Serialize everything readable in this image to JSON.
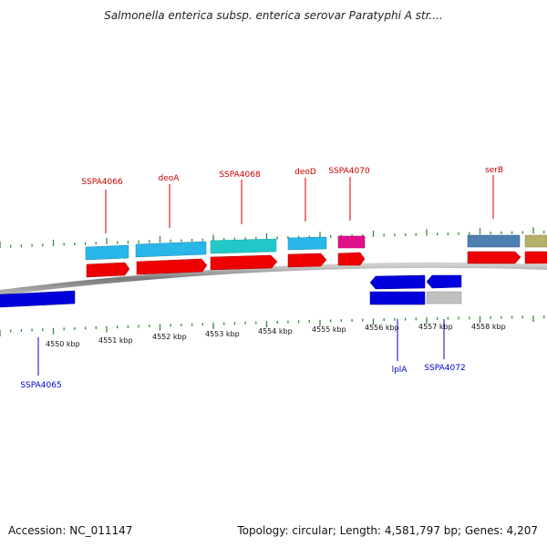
{
  "title": "Salmonella enterica subsp. enterica serovar Paratyphi A str....",
  "accession": "Accession: NC_011147",
  "summary": "Topology: circular; Length: 4,581,797 bp; Genes: 4,207",
  "colors": {
    "backbone": "#8c8c8c",
    "tick": "#2e8b2e",
    "gene_label_top": "#cc0000",
    "gene_label_bottom": "#0000cc",
    "cds": "#ee0000",
    "cds_reverse": "#0000dd"
  },
  "scale_labels": [
    "4550 kbp",
    "4551 kbp",
    "4552 kbp",
    "4553 kbp",
    "4554 kbp",
    "4555 kbp",
    "4556 kbp",
    "4557 kbp",
    "4558 kbp"
  ],
  "top_genes": [
    {
      "name": "SSPA4066",
      "color": "#29b6e8"
    },
    {
      "name": "deoA",
      "color": "#29b6e8"
    },
    {
      "name": "SSPA4068",
      "color": "#22c8c8"
    },
    {
      "name": "deoD",
      "color": "#29b6e8"
    },
    {
      "name": "SSPA4070",
      "color": "#e0108a"
    },
    {
      "name": "serB",
      "color": "#4d7fb0"
    }
  ],
  "bottom_genes": [
    {
      "name": "SSPA4065",
      "color": "#0000dd"
    },
    {
      "name": "lplA",
      "color": "#0000dd"
    },
    {
      "name": "SSPA4072",
      "color": "#c0c0c0"
    }
  ],
  "extra_feature_color": "#b5b06a"
}
